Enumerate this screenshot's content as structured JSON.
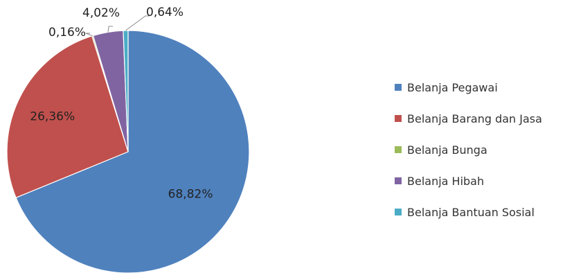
{
  "chart_data": {
    "type": "pie",
    "categories": [
      "Belanja Pegawai",
      "Belanja Barang dan Jasa",
      "Belanja Bunga",
      "Belanja Hibah",
      "Belanja Bantuan Sosial"
    ],
    "values": [
      68.82,
      26.36,
      0.16,
      4.02,
      0.64
    ],
    "data_labels": [
      "68,82%",
      "26,36%",
      "0,16%",
      "4,02%",
      "0,64%"
    ],
    "colors": [
      "#4f81bd",
      "#c0504d",
      "#9bbb59",
      "#8064a2",
      "#4bacc6"
    ],
    "start": "12 o'clock",
    "direction": "clockwise",
    "legend_position": "right",
    "title": ""
  }
}
